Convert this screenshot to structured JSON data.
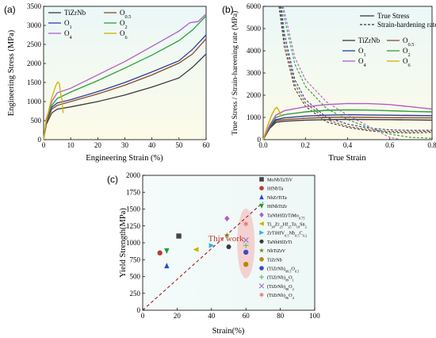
{
  "chart_data": [
    {
      "panel": "(a)",
      "type": "line",
      "xlabel": "Engineering Strain (%)",
      "ylabel": "Engineering Stress (MPa)",
      "xlim": [
        0,
        60
      ],
      "ylim": [
        0,
        3500
      ],
      "xticks": [
        "0",
        "10",
        "20",
        "30",
        "40",
        "50",
        "60"
      ],
      "yticks": [
        "0",
        "500",
        "1000",
        "1500",
        "2000",
        "2500",
        "3000",
        "3500"
      ],
      "legend_placement": "top-left",
      "series": [
        {
          "name": "TiZrNb",
          "sub": "",
          "color": "#3a3a3a",
          "x": [
            0,
            1,
            3,
            5,
            10,
            20,
            30,
            40,
            50,
            55,
            60
          ],
          "y": [
            0,
            400,
            700,
            800,
            860,
            1000,
            1170,
            1380,
            1620,
            1900,
            2250
          ]
        },
        {
          "name": "O",
          "sub": "0.5",
          "color": "#8b4a2b",
          "x": [
            0,
            1,
            3,
            5,
            10,
            20,
            30,
            40,
            50,
            55,
            60
          ],
          "y": [
            0,
            450,
            800,
            900,
            1000,
            1200,
            1430,
            1700,
            2010,
            2250,
            2650
          ]
        },
        {
          "name": "O",
          "sub": "1",
          "color": "#2c3e9e",
          "x": [
            0,
            1,
            3,
            5,
            10,
            20,
            30,
            40,
            50,
            55,
            60
          ],
          "y": [
            0,
            500,
            850,
            960,
            1050,
            1260,
            1500,
            1780,
            2070,
            2370,
            2750
          ]
        },
        {
          "name": "O",
          "sub": "2",
          "color": "#2e9e3e",
          "x": [
            0,
            1,
            3,
            5,
            10,
            20,
            30,
            40,
            50,
            55,
            60
          ],
          "y": [
            0,
            520,
            900,
            1080,
            1250,
            1550,
            1880,
            2220,
            2600,
            2880,
            3250
          ]
        },
        {
          "name": "O",
          "sub": "4",
          "color": "#b05ec8",
          "x": [
            0,
            1,
            3,
            5,
            10,
            20,
            30,
            40,
            50,
            54,
            57,
            60
          ],
          "y": [
            0,
            550,
            1000,
            1230,
            1350,
            1700,
            2050,
            2450,
            2850,
            3070,
            3100,
            3300
          ]
        },
        {
          "name": "O",
          "sub": "6",
          "color": "#d4b000",
          "x": [
            0,
            1,
            3,
            4.5,
            5.2,
            5.8,
            6.3,
            6.8,
            7.2
          ],
          "y": [
            0,
            500,
            1100,
            1420,
            1510,
            1480,
            1200,
            1050,
            700
          ]
        }
      ]
    },
    {
      "panel": "(b)",
      "type": "line",
      "xlabel": "True Strain",
      "ylabel": "True Stress / Strain-hareening rate (MPa)",
      "xlim": [
        0,
        0.8
      ],
      "ylim": [
        0,
        6000
      ],
      "xticks": [
        "0.0",
        "0.2",
        "0.4",
        "0.6",
        "0.8"
      ],
      "yticks": [
        "0",
        "1000",
        "2000",
        "3000",
        "4000",
        "5000",
        "6000"
      ],
      "legend_placement": "top-right",
      "legend_styles": [
        {
          "label": "True Stress",
          "style": "solid"
        },
        {
          "label": "Strain-hardening rate",
          "style": "dashed"
        }
      ],
      "series": [
        {
          "name": "TiZrNb",
          "sub": "",
          "color": "#3a3a3a",
          "stress_x": [
            0,
            0.03,
            0.06,
            0.1,
            0.2,
            0.3,
            0.4,
            0.5,
            0.6,
            0.7,
            0.8
          ],
          "stress_y": [
            0,
            500,
            780,
            830,
            880,
            900,
            910,
            905,
            900,
            890,
            880
          ],
          "rate_x": [
            0.075,
            0.1,
            0.15,
            0.2,
            0.3,
            0.4,
            0.5,
            0.6,
            0.7,
            0.8
          ],
          "rate_y": [
            6000,
            4200,
            2300,
            1500,
            800,
            550,
            400,
            320,
            300,
            330
          ]
        },
        {
          "name": "O",
          "sub": "0.5",
          "color": "#8b4a2b",
          "stress_x": [
            0,
            0.03,
            0.06,
            0.1,
            0.2,
            0.3,
            0.4,
            0.5,
            0.6,
            0.7,
            0.8
          ],
          "stress_y": [
            0,
            520,
            850,
            900,
            960,
            1000,
            1010,
            1000,
            990,
            985,
            980
          ],
          "rate_x": [
            0.08,
            0.1,
            0.15,
            0.2,
            0.3,
            0.4,
            0.5,
            0.6,
            0.7,
            0.8
          ],
          "rate_y": [
            6000,
            4500,
            2500,
            1650,
            900,
            600,
            450,
            370,
            360,
            380
          ]
        },
        {
          "name": "O",
          "sub": "1",
          "color": "#2c3e9e",
          "stress_x": [
            0,
            0.03,
            0.06,
            0.1,
            0.2,
            0.3,
            0.4,
            0.5,
            0.6,
            0.7,
            0.8
          ],
          "stress_y": [
            0,
            560,
            900,
            980,
            1060,
            1100,
            1120,
            1110,
            1100,
            1090,
            1080
          ],
          "rate_x": [
            0.085,
            0.1,
            0.15,
            0.2,
            0.3,
            0.4,
            0.5,
            0.6,
            0.7,
            0.8
          ],
          "rate_y": [
            6000,
            4800,
            2700,
            1800,
            1000,
            700,
            520,
            440,
            420,
            420
          ]
        },
        {
          "name": "O",
          "sub": "2",
          "color": "#2e9e3e",
          "stress_x": [
            0,
            0.03,
            0.06,
            0.1,
            0.2,
            0.3,
            0.4,
            0.5,
            0.6,
            0.7,
            0.8
          ],
          "stress_y": [
            0,
            600,
            1000,
            1120,
            1250,
            1320,
            1340,
            1330,
            1300,
            1270,
            1250
          ],
          "rate_x": [
            0.09,
            0.1,
            0.15,
            0.2,
            0.3,
            0.4,
            0.5,
            0.6,
            0.7,
            0.8
          ],
          "rate_y": [
            6000,
            5500,
            3400,
            2400,
            1400,
            900,
            550,
            250,
            100,
            60
          ]
        },
        {
          "name": "O",
          "sub": "4",
          "color": "#b05ec8",
          "stress_x": [
            0,
            0.03,
            0.06,
            0.1,
            0.2,
            0.3,
            0.4,
            0.5,
            0.6,
            0.7,
            0.8
          ],
          "stress_y": [
            0,
            650,
            1100,
            1300,
            1480,
            1580,
            1630,
            1620,
            1580,
            1480,
            1380
          ],
          "rate_x": [
            0.095,
            0.1,
            0.15,
            0.2,
            0.3,
            0.4,
            0.5,
            0.55,
            0.6,
            0.65
          ],
          "rate_y": [
            6000,
            5800,
            3700,
            2700,
            1700,
            1100,
            600,
            350,
            100,
            10
          ]
        },
        {
          "name": "O",
          "sub": "6",
          "color": "#d4b000",
          "stress_x": [
            0,
            0.02,
            0.04,
            0.055,
            0.065,
            0.075,
            0.085
          ],
          "stress_y": [
            0,
            600,
            1100,
            1380,
            1450,
            1300,
            1050
          ],
          "rate_x": [],
          "rate_y": []
        }
      ]
    },
    {
      "panel": "(c)",
      "type": "scatter",
      "xlabel": "Strain(%)",
      "ylabel": "Yield Strength(MPa)",
      "xlim": [
        0,
        100
      ],
      "ylim": [
        0,
        2000
      ],
      "xticks": [
        "0",
        "20",
        "40",
        "60",
        "80",
        "100"
      ],
      "yticks": [
        "0",
        "250",
        "500",
        "750",
        "1000",
        "1250",
        "1500",
        "1750",
        "2000"
      ],
      "legend_placement": "right",
      "annotation": "This work",
      "trend_line": {
        "x": [
          0,
          70
        ],
        "y": [
          0,
          1600
        ],
        "color": "#a51c1c",
        "style": "dashed"
      },
      "points": [
        {
          "label": "MoNbTaTiV",
          "x": 21,
          "y": 1100,
          "color": "#444444",
          "marker": "square"
        },
        {
          "label": "HfNbTa",
          "x": 10,
          "y": 850,
          "color": "#c0392b",
          "marker": "circle"
        },
        {
          "label": "NbZrTiTa",
          "x": 14,
          "y": 660,
          "color": "#1f4ed8",
          "marker": "triangle-up"
        },
        {
          "label": "HfNbTiZr",
          "x": 14,
          "y": 880,
          "color": "#1a9e3a",
          "marker": "triangle-down"
        },
        {
          "label": "TaNbHfZrTiMo",
          "sub": "0.75",
          "x": 49,
          "y": 1360,
          "color": "#b05ec8",
          "marker": "diamond"
        },
        {
          "label": "Ti",
          "sub": "38",
          "label2": "Zr",
          "sub2": "25",
          "label3": "Hf",
          "sub3": "25",
          "label4": "Ta",
          "sub4": "10",
          "label5": "Sn",
          "sub5": "2",
          "x": 31,
          "y": 900,
          "color": "#c9b400",
          "marker": "triangle-left"
        },
        {
          "label": "ZrTiHfV",
          "sub": "0.5",
          "label2": "Nb",
          "sub2": "0.5",
          "label3": "C",
          "sub3": "0.2",
          "x": 40,
          "y": 960,
          "color": "#2eb6d6",
          "marker": "triangle-right"
        },
        {
          "label": "TaNbHfZrTi",
          "x": 50,
          "y": 940,
          "color": "#3a3a3a",
          "marker": "hexagon"
        },
        {
          "label": "NbTiZrV",
          "x": 49,
          "y": 1110,
          "color": "#8a7a1a",
          "marker": "star"
        },
        {
          "label": "TiZrNb",
          "x": 60,
          "y": 680,
          "color": "#b8860b",
          "marker": "circle"
        },
        {
          "label": "(TiZrNb)",
          "sub": "99.5",
          "label2": "O",
          "sub2": "0.5",
          "x": 60,
          "y": 860,
          "color": "#3b4cc0",
          "marker": "circle"
        },
        {
          "label": "(TiZrNb)",
          "sub": "99",
          "label2": "O",
          "sub2": "1",
          "x": 60,
          "y": 960,
          "color": "#66c466",
          "marker": "plus"
        },
        {
          "label": "(TiZrNb)",
          "sub": "98",
          "label2": "O",
          "sub2": "2",
          "x": 60,
          "y": 1040,
          "color": "#9b7ac8",
          "marker": "x"
        },
        {
          "label": "(TiZrNb)",
          "sub": "96",
          "label2": "O",
          "sub2": "4",
          "x": 60,
          "y": 1280,
          "color": "#e06a6a",
          "marker": "asterisk"
        }
      ]
    }
  ],
  "colors": {
    "bg_top": "#f2fbfb",
    "bg_bottom": "#fdfbea",
    "highlight": "#f6b0b0"
  }
}
